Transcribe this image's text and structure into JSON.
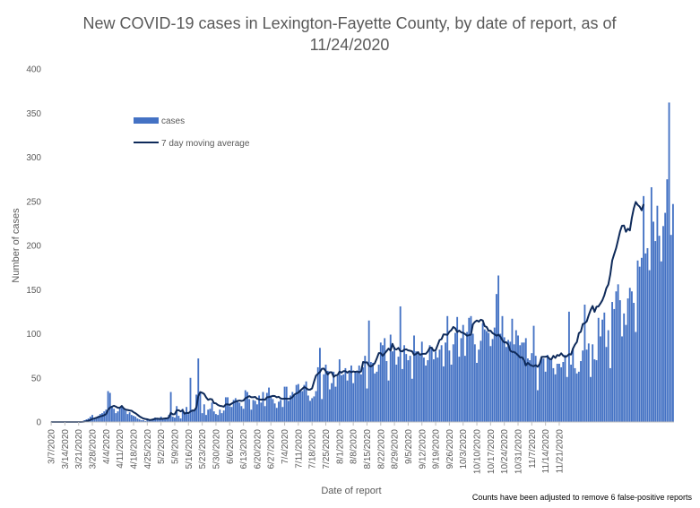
{
  "chart_data": {
    "type": "bar",
    "title_line1": "New COVID-19 cases in Lexington-Fayette County, by date of report, as of",
    "title_line2": "11/24/2020",
    "xlabel": "Date of report",
    "ylabel": "Number of cases",
    "footnote": "Counts have been adjusted to remove 6 false-positive reports",
    "ylim": [
      0,
      400
    ],
    "yticks": [
      0,
      50,
      100,
      150,
      200,
      250,
      300,
      350,
      400
    ],
    "x_tick_labels": [
      "3/7/2020",
      "3/14/2020",
      "3/21/2020",
      "3/28/2020",
      "4/4/2020",
      "4/11/2020",
      "4/18/2020",
      "4/25/2020",
      "5/2/2020",
      "5/9/2020",
      "5/16/2020",
      "5/23/2020",
      "5/30/2020",
      "6/6/2020",
      "6/13/2020",
      "6/20/2020",
      "6/27/2020",
      "7/4/2020",
      "7/11/2020",
      "7/18/2020",
      "7/25/2020",
      "8/1/2020",
      "8/8/2020",
      "8/15/2020",
      "8/22/2020",
      "8/29/2020",
      "9/5/2020",
      "9/12/2020",
      "9/19/2020",
      "9/26/2020",
      "10/3/2020",
      "10/10/2020",
      "10/17/2020",
      "10/24/2020",
      "10/31/2020",
      "11/7/2020",
      "11/14/2020",
      "11/21/2020"
    ],
    "start_date": "3/7/2020",
    "grid": false,
    "legend": {
      "position": "top-left",
      "entries": [
        {
          "label": "cases",
          "kind": "bar"
        },
        {
          "label": "7 day moving average",
          "kind": "line"
        }
      ]
    },
    "colors": {
      "bar": "#4472c4",
      "line": "#0e2a5a",
      "text": "#595959",
      "axis": "#bfbfbf"
    },
    "series": [
      {
        "name": "cases",
        "type": "bar",
        "values": [
          0,
          0,
          0,
          0,
          0,
          0,
          0,
          0,
          0,
          0,
          0,
          0,
          0,
          0,
          0,
          0,
          1,
          2,
          3,
          4,
          6,
          8,
          3,
          5,
          7,
          9,
          10,
          12,
          14,
          35,
          33,
          17,
          15,
          10,
          12,
          16,
          18,
          15,
          13,
          9,
          11,
          8,
          7,
          6,
          4,
          3,
          2,
          2,
          1,
          3,
          2,
          2,
          3,
          5,
          4,
          3,
          6,
          3,
          4,
          5,
          8,
          34,
          6,
          5,
          18,
          7,
          4,
          15,
          11,
          17,
          9,
          50,
          14,
          14,
          31,
          72,
          34,
          10,
          20,
          8,
          14,
          15,
          22,
          12,
          9,
          8,
          14,
          10,
          13,
          28,
          28,
          18,
          17,
          25,
          27,
          24,
          22,
          18,
          15,
          36,
          34,
          26,
          14,
          25,
          24,
          20,
          30,
          22,
          34,
          18,
          33,
          39,
          30,
          26,
          21,
          16,
          23,
          25,
          17,
          40,
          40,
          24,
          30,
          34,
          30,
          42,
          43,
          36,
          35,
          42,
          46,
          30,
          24,
          27,
          29,
          35,
          62,
          84,
          26,
          54,
          65,
          58,
          37,
          44,
          57,
          40,
          52,
          71,
          53,
          54,
          61,
          47,
          56,
          64,
          44,
          56,
          56,
          64,
          54,
          62,
          75,
          38,
          115,
          68,
          67,
          55,
          57,
          65,
          90,
          87,
          95,
          69,
          47,
          99,
          80,
          85,
          65,
          74,
          131,
          60,
          87,
          77,
          70,
          75,
          49,
          98,
          80,
          80,
          75,
          91,
          73,
          64,
          70,
          87,
          85,
          71,
          80,
          73,
          82,
          87,
          63,
          90,
          120,
          81,
          65,
          88,
          101,
          119,
          74,
          95,
          110,
          75,
          102,
          118,
          120,
          100,
          88,
          67,
          82,
          92,
          112,
          105,
          103,
          101,
          86,
          94,
          107,
          145,
          166,
          100,
          120,
          96,
          85,
          93,
          91,
          117,
          88,
          104,
          98,
          87,
          90,
          90,
          95,
          72,
          70,
          78,
          109,
          75,
          36,
          66,
          74,
          72,
          57,
          76,
          71,
          70,
          61,
          54,
          66,
          66,
          62,
          68,
          76,
          51,
          125,
          65,
          84,
          61,
          55,
          57,
          69,
          81,
          133,
          82,
          89,
          51,
          88,
          71,
          70,
          118,
          97,
          116,
          124,
          85,
          104,
          61,
          136,
          128,
          148,
          156,
          138,
          97,
          123,
          110,
          140,
          152,
          148,
          135,
          102,
          183,
          176,
          186,
          256,
          191,
          197,
          172,
          266,
          227,
          205,
          245,
          211,
          182,
          222,
          237,
          275,
          362,
          212,
          247
        ]
      },
      {
        "name": "7 day moving average",
        "type": "line",
        "values": [
          0,
          0,
          0,
          0,
          0,
          0,
          0,
          0,
          0,
          0,
          0,
          0,
          0,
          0,
          0,
          0,
          0.1,
          0.4,
          0.9,
          1.4,
          2.3,
          3.5,
          4.0,
          4.7,
          5.4,
          6.3,
          6.9,
          7.7,
          9.0,
          13.7,
          16.3,
          17.4,
          18.4,
          17.4,
          16.1,
          16.1,
          18.2,
          15.4,
          14.0,
          13.6,
          13.1,
          12.7,
          11.1,
          9.9,
          8.2,
          6.4,
          5.1,
          3.9,
          3.4,
          3.1,
          2.3,
          2.4,
          2.9,
          3.6,
          3.8,
          3.6,
          3.6,
          3.7,
          4.0,
          4.1,
          5.0,
          10.4,
          8.6,
          8.9,
          13.3,
          13.3,
          12.0,
          13.3,
          9.4,
          10.4,
          10.0,
          11.9,
          13.0,
          13.0,
          16.5,
          29.7,
          33.9,
          33.1,
          31.7,
          27.9,
          25.1,
          26.1,
          25.6,
          21.4,
          21.1,
          19.3,
          18.3,
          18.0,
          17.3,
          19.9,
          20.1,
          19.3,
          20.8,
          22.1,
          23.0,
          23.9,
          24.3,
          23.9,
          24.3,
          26.8,
          28.1,
          29.3,
          28.0,
          28.0,
          28.4,
          26.3,
          25.7,
          25.3,
          25.7,
          25.1,
          27.9,
          28.3,
          28.9,
          29.6,
          29.4,
          28.0,
          28.6,
          26.7,
          26.2,
          26.5,
          26.4,
          26.3,
          26.6,
          28.3,
          31.1,
          32.3,
          33.3,
          35.6,
          37.6,
          39.6,
          38.4,
          36.7,
          36.7,
          38.1,
          45.7,
          52.6,
          54.6,
          56.6,
          60.3,
          60.5,
          57.6,
          53.8,
          56.3,
          56.3,
          51.1,
          52.8,
          53.2,
          57.1,
          55.9,
          57.6,
          57.6,
          55.9,
          57.6,
          56.4,
          57.3,
          56.7,
          57.3,
          56.3,
          57.3,
          68.0,
          67.4,
          67.6,
          63.8,
          62.9,
          64.4,
          66.7,
          72.1,
          78.0,
          78.0,
          75.0,
          77.7,
          80.4,
          83.2,
          80.9,
          88.5,
          83.0,
          82.1,
          83.9,
          80.4,
          80.0,
          82.0,
          82.3,
          81.1,
          80.7,
          80.0,
          76.0,
          77.1,
          79.1,
          76.1,
          77.1,
          77.3,
          77.3,
          79.9,
          84.1,
          84.1,
          80.6,
          81.4,
          87.0,
          92.9,
          93.9,
          99.3,
          99.1,
          98.7,
          102.3,
          104.1,
          107.7,
          106.1,
          101.9,
          103.6,
          101.6,
          101.0,
          99.6,
          97.8,
          98.4,
          99.1,
          110.7,
          113.4,
          115.0,
          113.7,
          115.9,
          115.1,
          108.6,
          107.6,
          103.3,
          103.4,
          100.6,
          99.4,
          97.7,
          99.0,
          96.6,
          92.6,
          90.1,
          90.3,
          87.7,
          80.8,
          79.4,
          79.4,
          77.8,
          75.7,
          73.1,
          73.4,
          70.4,
          64.1,
          67.0,
          64.9,
          63.8,
          63.2,
          64.4,
          62.6,
          65.6,
          73.7,
          73.9,
          74.0,
          74.3,
          71.6,
          70.9,
          74.9,
          72.6,
          75.9,
          75.1,
          77.8,
          75.1,
          73.7,
          74.7,
          76.9,
          76.4,
          83.2,
          87.6,
          90.7,
          100.6,
          102.3,
          111.0,
          111.9,
          113.9,
          120.9,
          126.9,
          131.4,
          124.8,
          130.6,
          131.0,
          134.3,
          138.0,
          143.7,
          151.5,
          155.7,
          166.9,
          183.0,
          190.2,
          197.0,
          206.3,
          215.9,
          222.4,
          222.6,
          215.5,
          219.0,
          217.1,
          231.3,
          242.0,
          249.3,
          246.0,
          244.0,
          239.9,
          246.9
        ]
      }
    ]
  }
}
